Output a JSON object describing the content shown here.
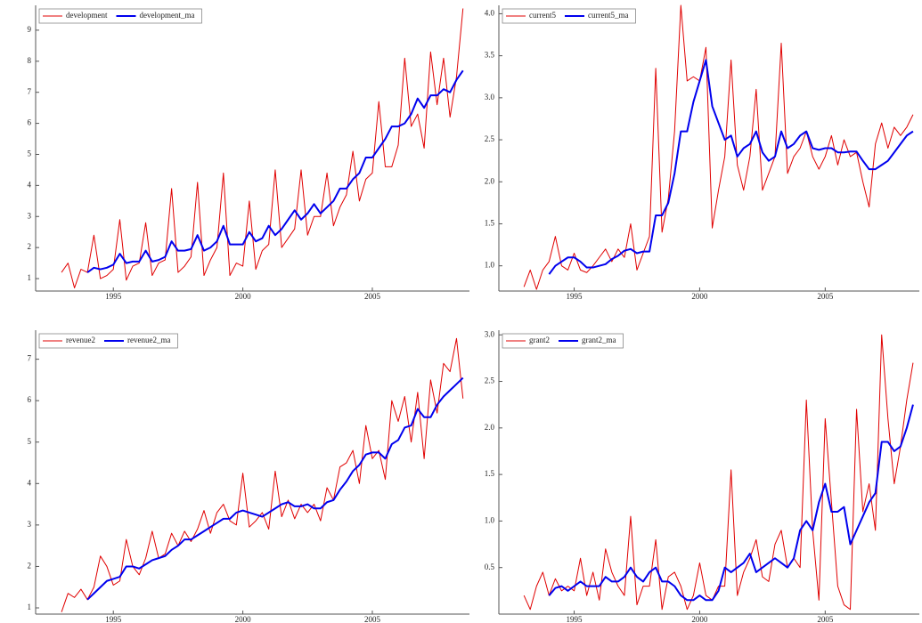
{
  "chart_data": [
    {
      "type": "line",
      "legend": "top-left",
      "x": [
        1993,
        1993.25,
        1993.5,
        1993.75,
        1994,
        1994.25,
        1994.5,
        1994.75,
        1995,
        1995.25,
        1995.5,
        1995.75,
        1996,
        1996.25,
        1996.5,
        1996.75,
        1997,
        1997.25,
        1997.5,
        1997.75,
        1998,
        1998.25,
        1998.5,
        1998.75,
        1999,
        1999.25,
        1999.5,
        1999.75,
        2000,
        2000.25,
        2000.5,
        2000.75,
        2001,
        2001.25,
        2001.5,
        2001.75,
        2002,
        2002.25,
        2002.5,
        2002.75,
        2003,
        2003.25,
        2003.5,
        2003.75,
        2004,
        2004.25,
        2004.5,
        2004.75,
        2005,
        2005.25,
        2005.5,
        2005.75,
        2006,
        2006.25,
        2006.5,
        2006.75,
        2007,
        2007.25,
        2007.5,
        2007.75,
        2008,
        2008.25,
        2008.5
      ],
      "xlim": [
        1992,
        2008.75
      ],
      "xticks": [
        1995,
        2000,
        2005
      ],
      "ylim": [
        0.6,
        9.8
      ],
      "yticks": [
        1,
        2,
        3,
        4,
        5,
        6,
        7,
        8,
        9
      ],
      "series": [
        {
          "name": "development",
          "color": "#e00000",
          "width": 1,
          "values": [
            1.2,
            1.5,
            0.7,
            1.3,
            1.2,
            2.4,
            1.0,
            1.1,
            1.3,
            2.9,
            0.95,
            1.4,
            1.5,
            2.8,
            1.1,
            1.5,
            1.6,
            3.9,
            1.2,
            1.4,
            1.7,
            4.1,
            1.1,
            1.6,
            2.0,
            4.4,
            1.1,
            1.5,
            1.4,
            3.5,
            1.3,
            1.9,
            2.1,
            4.5,
            2.0,
            2.3,
            2.6,
            4.5,
            2.4,
            3.0,
            3.0,
            4.4,
            2.7,
            3.3,
            3.7,
            5.1,
            3.5,
            4.2,
            4.4,
            6.7,
            4.6,
            4.6,
            5.3,
            8.1,
            5.9,
            6.3,
            5.2,
            8.3,
            6.6,
            8.1,
            6.2,
            7.5,
            9.7
          ]
        },
        {
          "name": "development_ma",
          "color": "#0000ee",
          "width": 2,
          "values": [
            null,
            null,
            null,
            null,
            1.2,
            1.35,
            1.3,
            1.35,
            1.45,
            1.8,
            1.5,
            1.55,
            1.55,
            1.9,
            1.55,
            1.6,
            1.7,
            2.2,
            1.9,
            1.9,
            1.95,
            2.4,
            1.9,
            2.0,
            2.2,
            2.7,
            2.1,
            2.1,
            2.1,
            2.5,
            2.2,
            2.3,
            2.7,
            2.4,
            2.6,
            2.9,
            3.2,
            2.9,
            3.1,
            3.4,
            3.1,
            3.3,
            3.5,
            3.9,
            3.9,
            4.2,
            4.4,
            4.9,
            4.9,
            5.2,
            5.5,
            5.9,
            5.9,
            6.0,
            6.3,
            6.8,
            6.5,
            6.9,
            6.9,
            7.1,
            7.0,
            7.4,
            7.7
          ]
        }
      ]
    },
    {
      "type": "line",
      "legend": "top-left",
      "x": [
        1993,
        1993.25,
        1993.5,
        1993.75,
        1994,
        1994.25,
        1994.5,
        1994.75,
        1995,
        1995.25,
        1995.5,
        1995.75,
        1996,
        1996.25,
        1996.5,
        1996.75,
        1997,
        1997.25,
        1997.5,
        1997.75,
        1998,
        1998.25,
        1998.5,
        1998.75,
        1999,
        1999.25,
        1999.5,
        1999.75,
        2000,
        2000.25,
        2000.5,
        2000.75,
        2001,
        2001.25,
        2001.5,
        2001.75,
        2002,
        2002.25,
        2002.5,
        2002.75,
        2003,
        2003.25,
        2003.5,
        2003.75,
        2004,
        2004.25,
        2004.5,
        2004.75,
        2005,
        2005.25,
        2005.5,
        2005.75,
        2006,
        2006.25,
        2006.5,
        2006.75,
        2007,
        2007.25,
        2007.5,
        2007.75,
        2008,
        2008.25,
        2008.5
      ],
      "xlim": [
        1992,
        2008.75
      ],
      "xticks": [
        1995,
        2000,
        2005
      ],
      "ylim": [
        0.7,
        4.1
      ],
      "yticks": [
        {
          "value": 1,
          "label": "1.0"
        },
        1.5,
        {
          "value": 2,
          "label": "2.0"
        },
        2.5,
        {
          "value": 3,
          "label": "3.0"
        },
        3.5,
        {
          "value": 4,
          "label": "4.0"
        }
      ],
      "series": [
        {
          "name": "current5",
          "color": "#e00000",
          "width": 1,
          "values": [
            0.75,
            0.95,
            0.72,
            0.95,
            1.05,
            1.35,
            1.0,
            0.95,
            1.15,
            0.95,
            0.92,
            1.0,
            1.1,
            1.2,
            1.05,
            1.2,
            1.1,
            1.5,
            0.95,
            1.15,
            1.35,
            3.35,
            1.4,
            1.8,
            2.6,
            4.1,
            3.2,
            3.25,
            3.2,
            3.6,
            1.45,
            1.9,
            2.3,
            3.45,
            2.2,
            1.9,
            2.3,
            3.1,
            1.9,
            2.1,
            2.3,
            3.65,
            2.1,
            2.3,
            2.4,
            2.6,
            2.3,
            2.15,
            2.3,
            2.55,
            2.2,
            2.5,
            2.3,
            2.35,
            2.0,
            1.7,
            2.45,
            2.7,
            2.4,
            2.65,
            2.55,
            2.65,
            2.8
          ]
        },
        {
          "name": "current5_ma",
          "color": "#0000ee",
          "width": 2,
          "values": [
            null,
            null,
            null,
            null,
            0.9,
            1.0,
            1.05,
            1.1,
            1.1,
            1.05,
            0.98,
            0.98,
            1.0,
            1.02,
            1.08,
            1.12,
            1.18,
            1.2,
            1.15,
            1.17,
            1.17,
            1.6,
            1.6,
            1.75,
            2.1,
            2.6,
            2.6,
            2.95,
            3.2,
            3.45,
            2.9,
            2.7,
            2.5,
            2.55,
            2.3,
            2.4,
            2.45,
            2.6,
            2.35,
            2.25,
            2.3,
            2.6,
            2.4,
            2.45,
            2.55,
            2.6,
            2.4,
            2.38,
            2.4,
            2.4,
            2.35,
            2.35,
            2.36,
            2.36,
            2.25,
            2.15,
            2.15,
            2.2,
            2.25,
            2.35,
            2.45,
            2.55,
            2.6
          ]
        }
      ]
    },
    {
      "type": "line",
      "legend": "top-left",
      "x": [
        1993,
        1993.25,
        1993.5,
        1993.75,
        1994,
        1994.25,
        1994.5,
        1994.75,
        1995,
        1995.25,
        1995.5,
        1995.75,
        1996,
        1996.25,
        1996.5,
        1996.75,
        1997,
        1997.25,
        1997.5,
        1997.75,
        1998,
        1998.25,
        1998.5,
        1998.75,
        1999,
        1999.25,
        1999.5,
        1999.75,
        2000,
        2000.25,
        2000.5,
        2000.75,
        2001,
        2001.25,
        2001.5,
        2001.75,
        2002,
        2002.25,
        2002.5,
        2002.75,
        2003,
        2003.25,
        2003.5,
        2003.75,
        2004,
        2004.25,
        2004.5,
        2004.75,
        2005,
        2005.25,
        2005.5,
        2005.75,
        2006,
        2006.25,
        2006.5,
        2006.75,
        2007,
        2007.25,
        2007.5,
        2007.75,
        2008,
        2008.25,
        2008.5
      ],
      "xlim": [
        1992,
        2008.75
      ],
      "xticks": [
        1995,
        2000,
        2005
      ],
      "ylim": [
        0.85,
        7.7
      ],
      "yticks": [
        1,
        2,
        3,
        4,
        5,
        6,
        7
      ],
      "series": [
        {
          "name": "revenue2",
          "color": "#e00000",
          "width": 1,
          "values": [
            0.9,
            1.35,
            1.25,
            1.45,
            1.2,
            1.5,
            2.25,
            2.0,
            1.55,
            1.65,
            2.65,
            2.0,
            1.8,
            2.2,
            2.85,
            2.2,
            2.3,
            2.8,
            2.5,
            2.85,
            2.6,
            2.9,
            3.35,
            2.8,
            3.3,
            3.5,
            3.1,
            3.0,
            4.25,
            2.95,
            3.1,
            3.3,
            2.9,
            4.3,
            3.2,
            3.6,
            3.15,
            3.5,
            3.3,
            3.5,
            3.1,
            3.9,
            3.6,
            4.4,
            4.5,
            4.8,
            4.0,
            5.4,
            4.6,
            4.8,
            4.1,
            6.0,
            5.5,
            6.1,
            5.0,
            6.2,
            4.6,
            6.5,
            5.7,
            6.9,
            6.7,
            7.5,
            6.05
          ]
        },
        {
          "name": "revenue2_ma",
          "color": "#0000ee",
          "width": 2,
          "values": [
            null,
            null,
            null,
            null,
            1.2,
            1.35,
            1.5,
            1.65,
            1.7,
            1.75,
            2.0,
            2.0,
            1.95,
            2.05,
            2.15,
            2.2,
            2.25,
            2.4,
            2.5,
            2.65,
            2.65,
            2.75,
            2.85,
            2.95,
            3.05,
            3.15,
            3.15,
            3.3,
            3.35,
            3.3,
            3.25,
            3.2,
            3.3,
            3.4,
            3.5,
            3.55,
            3.45,
            3.45,
            3.5,
            3.4,
            3.4,
            3.55,
            3.6,
            3.85,
            4.05,
            4.3,
            4.45,
            4.7,
            4.75,
            4.75,
            4.6,
            4.95,
            5.05,
            5.35,
            5.4,
            5.8,
            5.6,
            5.6,
            5.9,
            6.1,
            6.25,
            6.4,
            6.55
          ]
        }
      ]
    },
    {
      "type": "line",
      "legend": "top-left",
      "x": [
        1993,
        1993.25,
        1993.5,
        1993.75,
        1994,
        1994.25,
        1994.5,
        1994.75,
        1995,
        1995.25,
        1995.5,
        1995.75,
        1996,
        1996.25,
        1996.5,
        1996.75,
        1997,
        1997.25,
        1997.5,
        1997.75,
        1998,
        1998.25,
        1998.5,
        1998.75,
        1999,
        1999.25,
        1999.5,
        1999.75,
        2000,
        2000.25,
        2000.5,
        2000.75,
        2001,
        2001.25,
        2001.5,
        2001.75,
        2002,
        2002.25,
        2002.5,
        2002.75,
        2003,
        2003.25,
        2003.5,
        2003.75,
        2004,
        2004.25,
        2004.5,
        2004.75,
        2005,
        2005.25,
        2005.5,
        2005.75,
        2006,
        2006.25,
        2006.5,
        2006.75,
        2007,
        2007.25,
        2007.5,
        2007.75,
        2008,
        2008.25,
        2008.5
      ],
      "xlim": [
        1992,
        2008.75
      ],
      "xticks": [
        1995,
        2000,
        2005
      ],
      "ylim": [
        0,
        3.05
      ],
      "yticks": [
        0.5,
        {
          "value": 1,
          "label": "1.0"
        },
        1.5,
        {
          "value": 2,
          "label": "2.0"
        },
        2.5,
        {
          "value": 3,
          "label": "3.0"
        }
      ],
      "series": [
        {
          "name": "grant2",
          "color": "#e00000",
          "width": 1,
          "values": [
            0.2,
            0.05,
            0.3,
            0.45,
            0.2,
            0.38,
            0.25,
            0.3,
            0.25,
            0.6,
            0.2,
            0.45,
            0.15,
            0.7,
            0.45,
            0.3,
            0.2,
            1.05,
            0.1,
            0.3,
            0.3,
            0.8,
            0.05,
            0.4,
            0.45,
            0.3,
            0.05,
            0.2,
            0.55,
            0.2,
            0.15,
            0.3,
            0.3,
            1.55,
            0.2,
            0.45,
            0.6,
            0.8,
            0.4,
            0.35,
            0.75,
            0.9,
            0.5,
            0.6,
            0.5,
            2.3,
            0.9,
            0.15,
            2.1,
            1.2,
            0.3,
            0.1,
            0.05,
            2.2,
            1.1,
            1.4,
            0.9,
            3.0,
            2.1,
            1.4,
            1.8,
            2.3,
            2.7
          ]
        },
        {
          "name": "grant2_ma",
          "color": "#0000ee",
          "width": 2,
          "values": [
            null,
            null,
            null,
            null,
            0.2,
            0.28,
            0.3,
            0.25,
            0.3,
            0.35,
            0.3,
            0.3,
            0.3,
            0.4,
            0.35,
            0.35,
            0.4,
            0.5,
            0.4,
            0.35,
            0.45,
            0.5,
            0.35,
            0.35,
            0.3,
            0.2,
            0.15,
            0.15,
            0.2,
            0.15,
            0.15,
            0.25,
            0.5,
            0.45,
            0.5,
            0.55,
            0.65,
            0.45,
            0.5,
            0.55,
            0.6,
            0.55,
            0.5,
            0.6,
            0.9,
            1.0,
            0.9,
            1.2,
            1.4,
            1.1,
            1.1,
            1.15,
            0.75,
            0.9,
            1.05,
            1.2,
            1.3,
            1.85,
            1.85,
            1.75,
            1.8,
            2.0,
            2.25
          ]
        }
      ]
    }
  ]
}
